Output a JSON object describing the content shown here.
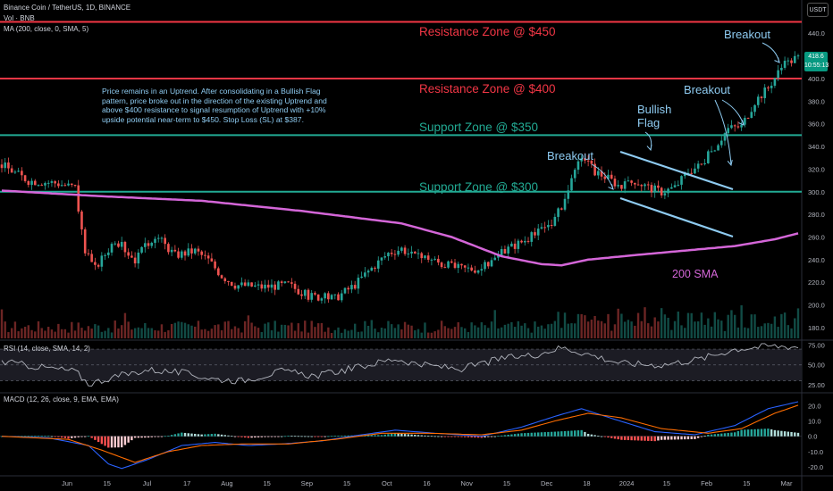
{
  "header": {
    "symbol": "Binance Coin / TetherUS, 1D, BINANCE",
    "volume": "Vol · BNB",
    "ma": "MA (200, close, 0, SMA, 5)",
    "rsi": "RSI (14, close, SMA, 14, 2)",
    "macd": "MACD (12, 26, close, 9, EMA, EMA)",
    "currency": "USDT"
  },
  "last_price": {
    "value": "418.6",
    "countdown": "10:55:13"
  },
  "colors": {
    "up": "#26a69a",
    "down": "#ef5350",
    "resistance": "#f23645",
    "support": "#22ab94",
    "annotation": "#8ecbf1",
    "sma": "#d466d8",
    "macd_line": "#2962ff",
    "signal_line": "#ff6d00"
  },
  "annotations": {
    "resistance_450": "Resistance Zone @ $450",
    "resistance_400": "Resistance Zone @ $400",
    "support_350": "Support Zone @ $350",
    "support_300": "Support Zone @ $300",
    "breakout_1": "Breakout",
    "breakout_2": "Breakout",
    "breakout_3": "Breakout",
    "flag_line1": "Bullish",
    "flag_line2": "Flag",
    "sma_label": "200 SMA",
    "note": "Price remains in an Uptrend. After consolidating in a Bullish Flag pattern, price broke out in the direction of the existing Uptrend and above $400 resistance to signal resumption of Uptrend with +10% upside potential near-term to $450. Stop Loss (SL) at $387."
  },
  "chart_data": {
    "type": "candlestick",
    "title": "Binance Coin / TetherUS, 1D, BINANCE",
    "x_ticks": [
      "Jun",
      "15",
      "Jul",
      "17",
      "Aug",
      "15",
      "Sep",
      "15",
      "Oct",
      "16",
      "Nov",
      "15",
      "Dec",
      "18",
      "2024",
      "15",
      "Feb",
      "15",
      "Mar"
    ],
    "price_axis": {
      "ticks": [
        180,
        200,
        220,
        240,
        260,
        280,
        300,
        320,
        340,
        360,
        380,
        400,
        420,
        440
      ],
      "range": [
        176,
        452
      ]
    },
    "rsi_axis": {
      "ticks": [
        25,
        50,
        75
      ],
      "range": [
        18,
        78
      ],
      "band": [
        30,
        70
      ]
    },
    "macd_axis": {
      "ticks": [
        -20,
        -10,
        0,
        10,
        20
      ],
      "range": [
        -24,
        26
      ]
    },
    "levels": [
      {
        "label": "Resistance Zone @ $450",
        "value": 450
      },
      {
        "label": "Resistance Zone @ $400",
        "value": 400
      },
      {
        "label": "Support Zone @ $350",
        "value": 350
      },
      {
        "label": "Support Zone @ $300",
        "value": 300
      }
    ],
    "price_path": [
      [
        0,
        324
      ],
      [
        8,
        310
      ],
      [
        16,
        308
      ],
      [
        22,
        304
      ],
      [
        25,
        246
      ],
      [
        28,
        232
      ],
      [
        34,
        258
      ],
      [
        40,
        240
      ],
      [
        46,
        262
      ],
      [
        52,
        244
      ],
      [
        58,
        248
      ],
      [
        62,
        240
      ],
      [
        66,
        226
      ],
      [
        70,
        218
      ],
      [
        78,
        216
      ],
      [
        86,
        218
      ],
      [
        92,
        208
      ],
      [
        100,
        206
      ],
      [
        106,
        218
      ],
      [
        110,
        230
      ],
      [
        116,
        246
      ],
      [
        120,
        250
      ],
      [
        124,
        242
      ],
      [
        128,
        242
      ],
      [
        132,
        236
      ],
      [
        138,
        232
      ],
      [
        144,
        232
      ],
      [
        152,
        250
      ],
      [
        160,
        262
      ],
      [
        166,
        276
      ],
      [
        170,
        300
      ],
      [
        174,
        332
      ],
      [
        178,
        318
      ],
      [
        182,
        312
      ],
      [
        186,
        304
      ],
      [
        190,
        310
      ],
      [
        194,
        304
      ],
      [
        198,
        300
      ],
      [
        202,
        304
      ],
      [
        206,
        318
      ],
      [
        210,
        324
      ],
      [
        214,
        340
      ],
      [
        218,
        356
      ],
      [
        222,
        358
      ],
      [
        226,
        380
      ],
      [
        230,
        392
      ],
      [
        234,
        410
      ],
      [
        238,
        418
      ],
      [
        240,
        418.6
      ]
    ],
    "sma_200": [
      [
        0,
        301
      ],
      [
        30,
        296
      ],
      [
        60,
        292
      ],
      [
        90,
        283
      ],
      [
        120,
        272
      ],
      [
        135,
        260
      ],
      [
        150,
        243
      ],
      [
        162,
        236
      ],
      [
        168,
        235
      ],
      [
        176,
        240
      ],
      [
        190,
        244
      ],
      [
        205,
        248
      ],
      [
        220,
        252
      ],
      [
        232,
        258
      ],
      [
        240,
        264
      ]
    ],
    "rsi_path": [
      [
        0,
        54
      ],
      [
        10,
        48
      ],
      [
        22,
        42
      ],
      [
        26,
        26
      ],
      [
        34,
        35
      ],
      [
        44,
        44
      ],
      [
        54,
        40
      ],
      [
        64,
        32
      ],
      [
        72,
        30
      ],
      [
        84,
        42
      ],
      [
        94,
        36
      ],
      [
        108,
        48
      ],
      [
        118,
        58
      ],
      [
        126,
        50
      ],
      [
        138,
        45
      ],
      [
        150,
        58
      ],
      [
        160,
        63
      ],
      [
        168,
        72
      ],
      [
        174,
        66
      ],
      [
        186,
        52
      ],
      [
        198,
        50
      ],
      [
        210,
        58
      ],
      [
        220,
        70
      ],
      [
        230,
        74
      ],
      [
        240,
        73
      ]
    ],
    "macd_path": [
      [
        0,
        0
      ],
      [
        14,
        -1
      ],
      [
        26,
        -6
      ],
      [
        32,
        -18
      ],
      [
        36,
        -21
      ],
      [
        44,
        -15
      ],
      [
        54,
        -6
      ],
      [
        64,
        -4
      ],
      [
        74,
        -6
      ],
      [
        84,
        -5
      ],
      [
        96,
        -3
      ],
      [
        108,
        1
      ],
      [
        118,
        4
      ],
      [
        130,
        2
      ],
      [
        144,
        0
      ],
      [
        156,
        6
      ],
      [
        166,
        13
      ],
      [
        174,
        18
      ],
      [
        184,
        11
      ],
      [
        196,
        3
      ],
      [
        208,
        1
      ],
      [
        220,
        7
      ],
      [
        230,
        18
      ],
      [
        240,
        23
      ]
    ],
    "signal_path": [
      [
        0,
        0
      ],
      [
        20,
        -2
      ],
      [
        30,
        -9
      ],
      [
        40,
        -17
      ],
      [
        50,
        -10
      ],
      [
        60,
        -6
      ],
      [
        72,
        -5
      ],
      [
        86,
        -5
      ],
      [
        100,
        -2
      ],
      [
        114,
        2
      ],
      [
        128,
        2
      ],
      [
        144,
        1
      ],
      [
        156,
        4
      ],
      [
        166,
        10
      ],
      [
        176,
        15
      ],
      [
        186,
        12
      ],
      [
        198,
        5
      ],
      [
        212,
        2
      ],
      [
        222,
        5
      ],
      [
        232,
        15
      ],
      [
        240,
        21
      ]
    ],
    "bars": 240
  }
}
